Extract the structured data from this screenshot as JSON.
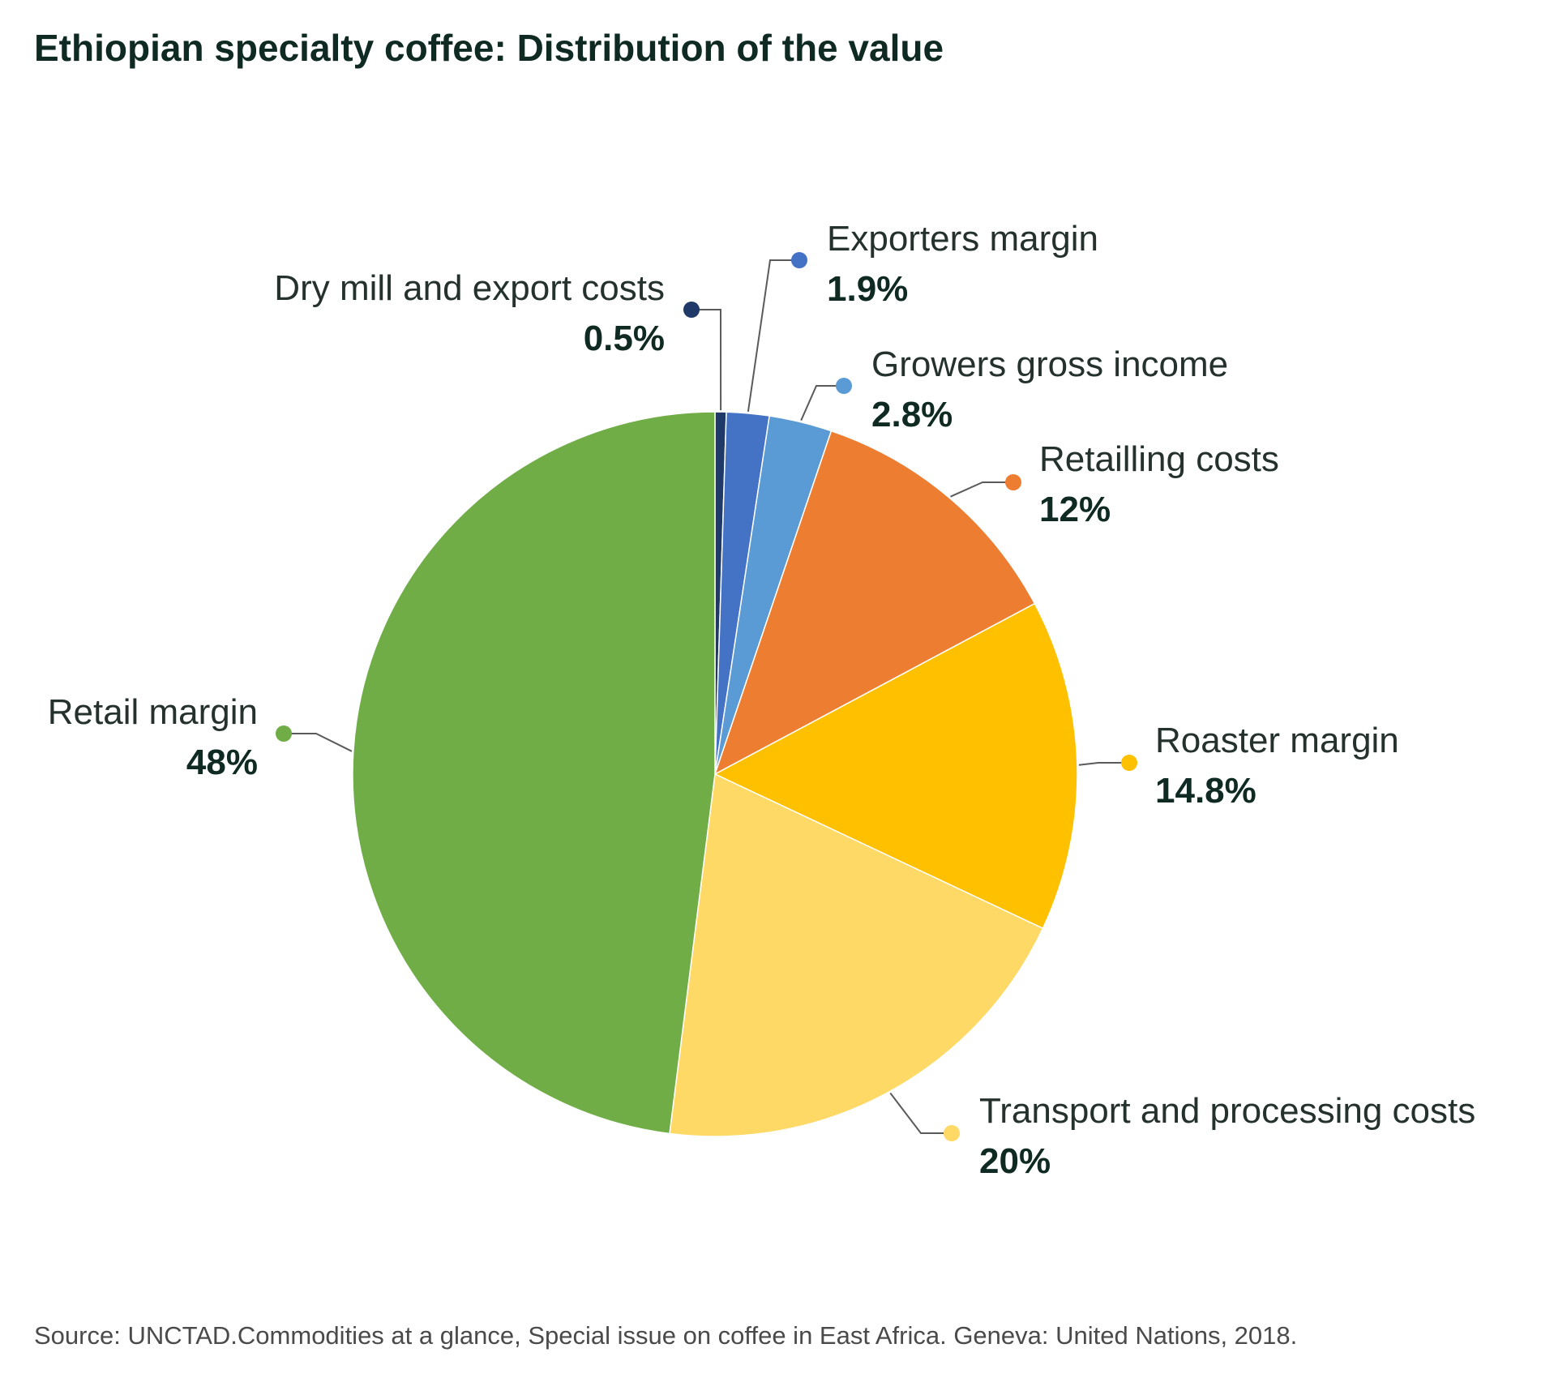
{
  "title": "Ethiopian specialty coffee: Distribution of the value",
  "source": "Source: UNCTAD.Commodities at a glance, Special issue on coffee in East Africa. Geneva: United Nations, 2018.",
  "chart_data": {
    "type": "pie",
    "title": "Ethiopian specialty coffee: Distribution of the value",
    "start": "12 o'clock",
    "direction": "clockwise",
    "slices": [
      {
        "label": "Dry mill and export costs",
        "value": 0.5,
        "value_label": "0.5%",
        "color": "#1f3a68"
      },
      {
        "label": "Exporters margin",
        "value": 1.9,
        "value_label": "1.9%",
        "color": "#4472c4"
      },
      {
        "label": "Growers gross income",
        "value": 2.8,
        "value_label": "2.8%",
        "color": "#5b9bd5"
      },
      {
        "label": "Retailling costs",
        "value": 12,
        "value_label": "12%",
        "color": "#ed7d31"
      },
      {
        "label": "Roaster margin",
        "value": 14.8,
        "value_label": "14.8%",
        "color": "#ffc000"
      },
      {
        "label": "Transport and processing costs",
        "value": 20,
        "value_label": "20%",
        "color": "#ffd966"
      },
      {
        "label": "Retail margin",
        "value": 48,
        "value_label": "48%",
        "color": "#70ad47"
      }
    ]
  }
}
